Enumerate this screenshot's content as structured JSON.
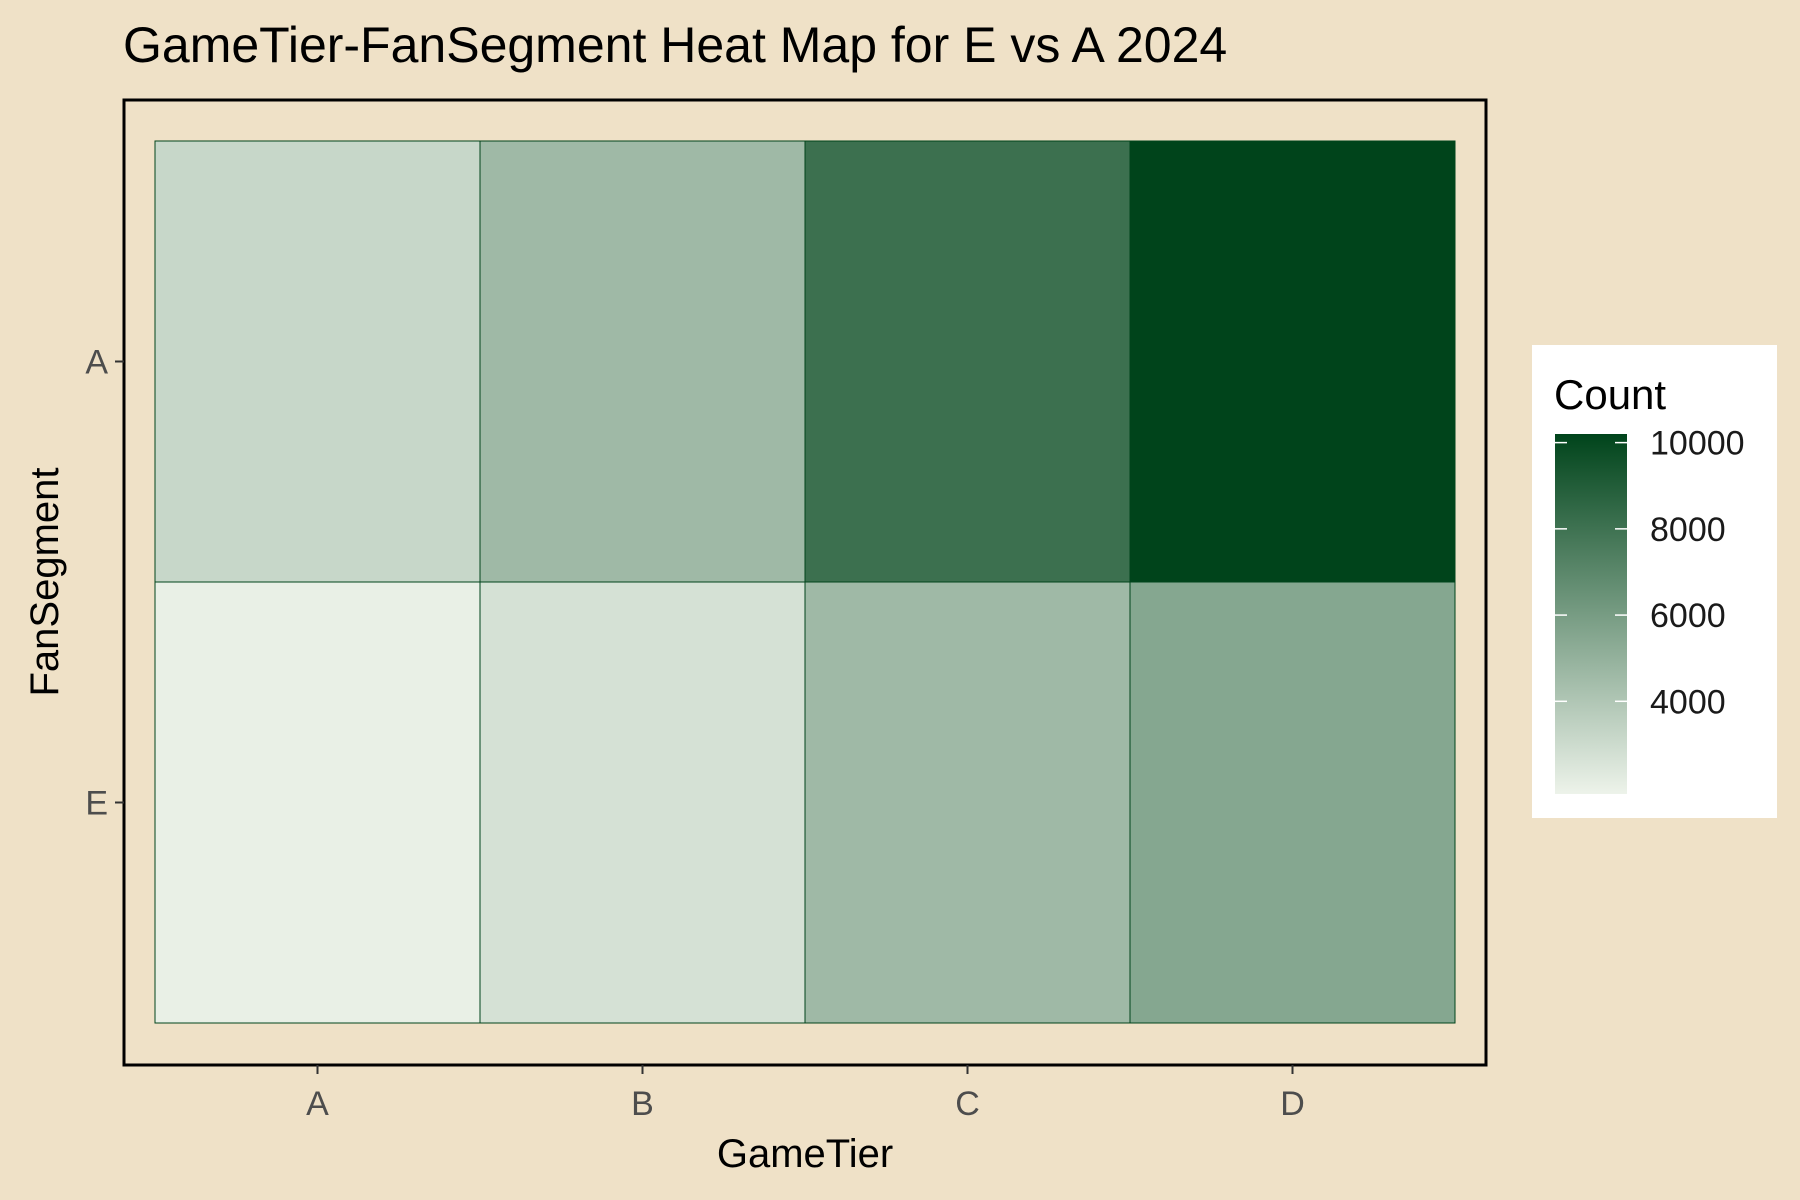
{
  "chart_data": {
    "type": "heatmap",
    "title": "GameTier-FanSegment Heat Map for E vs A 2024",
    "xlabel": "GameTier",
    "ylabel": "FanSegment",
    "x_categories": [
      "A",
      "B",
      "C",
      "D"
    ],
    "y_categories": [
      "E",
      "A"
    ],
    "values": [
      {
        "x": "A",
        "y": "A",
        "value": 3200
      },
      {
        "x": "B",
        "y": "A",
        "value": 4600
      },
      {
        "x": "C",
        "y": "A",
        "value": 8100
      },
      {
        "x": "D",
        "y": "A",
        "value": 10200
      },
      {
        "x": "A",
        "y": "E",
        "value": 2000
      },
      {
        "x": "B",
        "y": "E",
        "value": 2700
      },
      {
        "x": "C",
        "y": "E",
        "value": 4600
      },
      {
        "x": "D",
        "y": "E",
        "value": 5500
      }
    ],
    "legend": {
      "title": "Count",
      "ticks": [
        4000,
        6000,
        8000,
        10000
      ],
      "range": [
        1850,
        10200
      ],
      "placement": "right"
    },
    "colors": {
      "low": "#EDF3EA",
      "high": "#00441B",
      "background": "#EFE1C7",
      "tile_border": "#00441B"
    },
    "grid": false
  }
}
